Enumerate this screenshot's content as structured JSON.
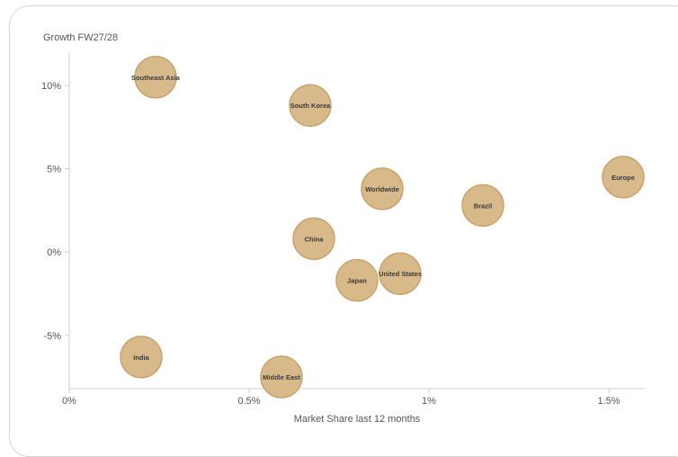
{
  "chart_data": {
    "type": "scatter",
    "title": "",
    "xlabel": "Market Share last 12 months",
    "ylabel": "Growth FW27/28",
    "xlim": [
      0,
      1.6
    ],
    "ylim": [
      -8.2,
      12
    ],
    "x_ticks": [
      {
        "value": 0,
        "label": "0%"
      },
      {
        "value": 0.5,
        "label": "0.5%"
      },
      {
        "value": 1,
        "label": "1%"
      },
      {
        "value": 1.5,
        "label": "1.5%"
      }
    ],
    "y_ticks": [
      {
        "value": 10,
        "label": "10%"
      },
      {
        "value": 5,
        "label": "5%"
      },
      {
        "value": 0,
        "label": "0%"
      },
      {
        "value": -5,
        "label": "-5%"
      }
    ],
    "bubble_color": "#d8b98a",
    "bubble_stroke": "#c8a56e",
    "points": [
      {
        "name": "Southeast Asia",
        "x": 0.24,
        "y": 10.5
      },
      {
        "name": "South Korea",
        "x": 0.67,
        "y": 8.8
      },
      {
        "name": "Worldwide",
        "x": 0.87,
        "y": 3.8
      },
      {
        "name": "Europe",
        "x": 1.54,
        "y": 4.5
      },
      {
        "name": "Brazil",
        "x": 1.15,
        "y": 2.8
      },
      {
        "name": "China",
        "x": 0.68,
        "y": 0.8
      },
      {
        "name": "Japan",
        "x": 0.8,
        "y": -1.7
      },
      {
        "name": "United States",
        "x": 0.92,
        "y": -1.3
      },
      {
        "name": "India",
        "x": 0.2,
        "y": -6.3
      },
      {
        "name": "Middle East",
        "x": 0.59,
        "y": -7.5
      }
    ]
  }
}
